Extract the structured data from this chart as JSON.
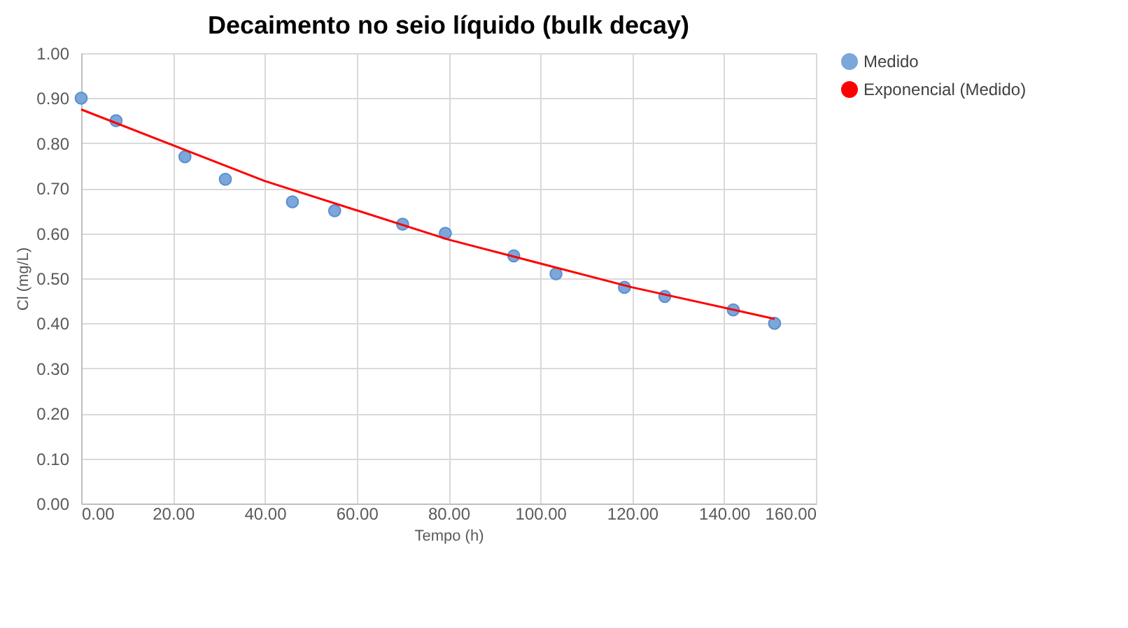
{
  "chart_data": {
    "type": "scatter",
    "title": "Decaimento no seio líquido (bulk decay)",
    "xlabel": "Tempo (h)",
    "ylabel": "Cl  (mg/L)",
    "x": [
      0,
      7.6,
      22.6,
      31.4,
      46,
      55.2,
      70,
      79.3,
      94.2,
      103.4,
      118.3,
      127.1,
      142,
      151
    ],
    "series": [
      {
        "name": "Medido",
        "color": "#7ba7da",
        "marker": "circle",
        "values": [
          0.9,
          0.85,
          0.77,
          0.72,
          0.67,
          0.65,
          0.62,
          0.6,
          0.55,
          0.51,
          0.48,
          0.46,
          0.43,
          0.4
        ]
      },
      {
        "name": "Exponencial (Medido)",
        "type": "line",
        "color": "#ff0000",
        "marker": "none",
        "line_style": "solid",
        "x": [
          0,
          40,
          80,
          120,
          151
        ],
        "values": [
          0.875,
          0.716,
          0.586,
          0.48,
          0.41
        ]
      }
    ],
    "xlim": [
      0,
      160
    ],
    "xticks": [
      {
        "value": 0,
        "label": "0.00"
      },
      {
        "value": 20,
        "label": "20.00"
      },
      {
        "value": 40,
        "label": "40.00"
      },
      {
        "value": 60,
        "label": "60.00"
      },
      {
        "value": 80,
        "label": "80.00"
      },
      {
        "value": 100,
        "label": "100.00"
      },
      {
        "value": 120,
        "label": "120.00"
      },
      {
        "value": 140,
        "label": "140.00"
      },
      {
        "value": 160,
        "label": "160.00"
      }
    ],
    "ylim": [
      0,
      1
    ],
    "yticks": [
      {
        "value": 0,
        "label": "0.00"
      },
      {
        "value": 0.1,
        "label": "0.10"
      },
      {
        "value": 0.2,
        "label": "0.20"
      },
      {
        "value": 0.3,
        "label": "0.30"
      },
      {
        "value": 0.4,
        "label": "0.40"
      },
      {
        "value": 0.5,
        "label": "0.50"
      },
      {
        "value": 0.6,
        "label": "0.60"
      },
      {
        "value": 0.7,
        "label": "0.70"
      },
      {
        "value": 0.8,
        "label": "0.80"
      },
      {
        "value": 0.9,
        "label": "0.90"
      },
      {
        "value": 1,
        "label": "1.00"
      }
    ],
    "grid": true,
    "legend": "right"
  }
}
